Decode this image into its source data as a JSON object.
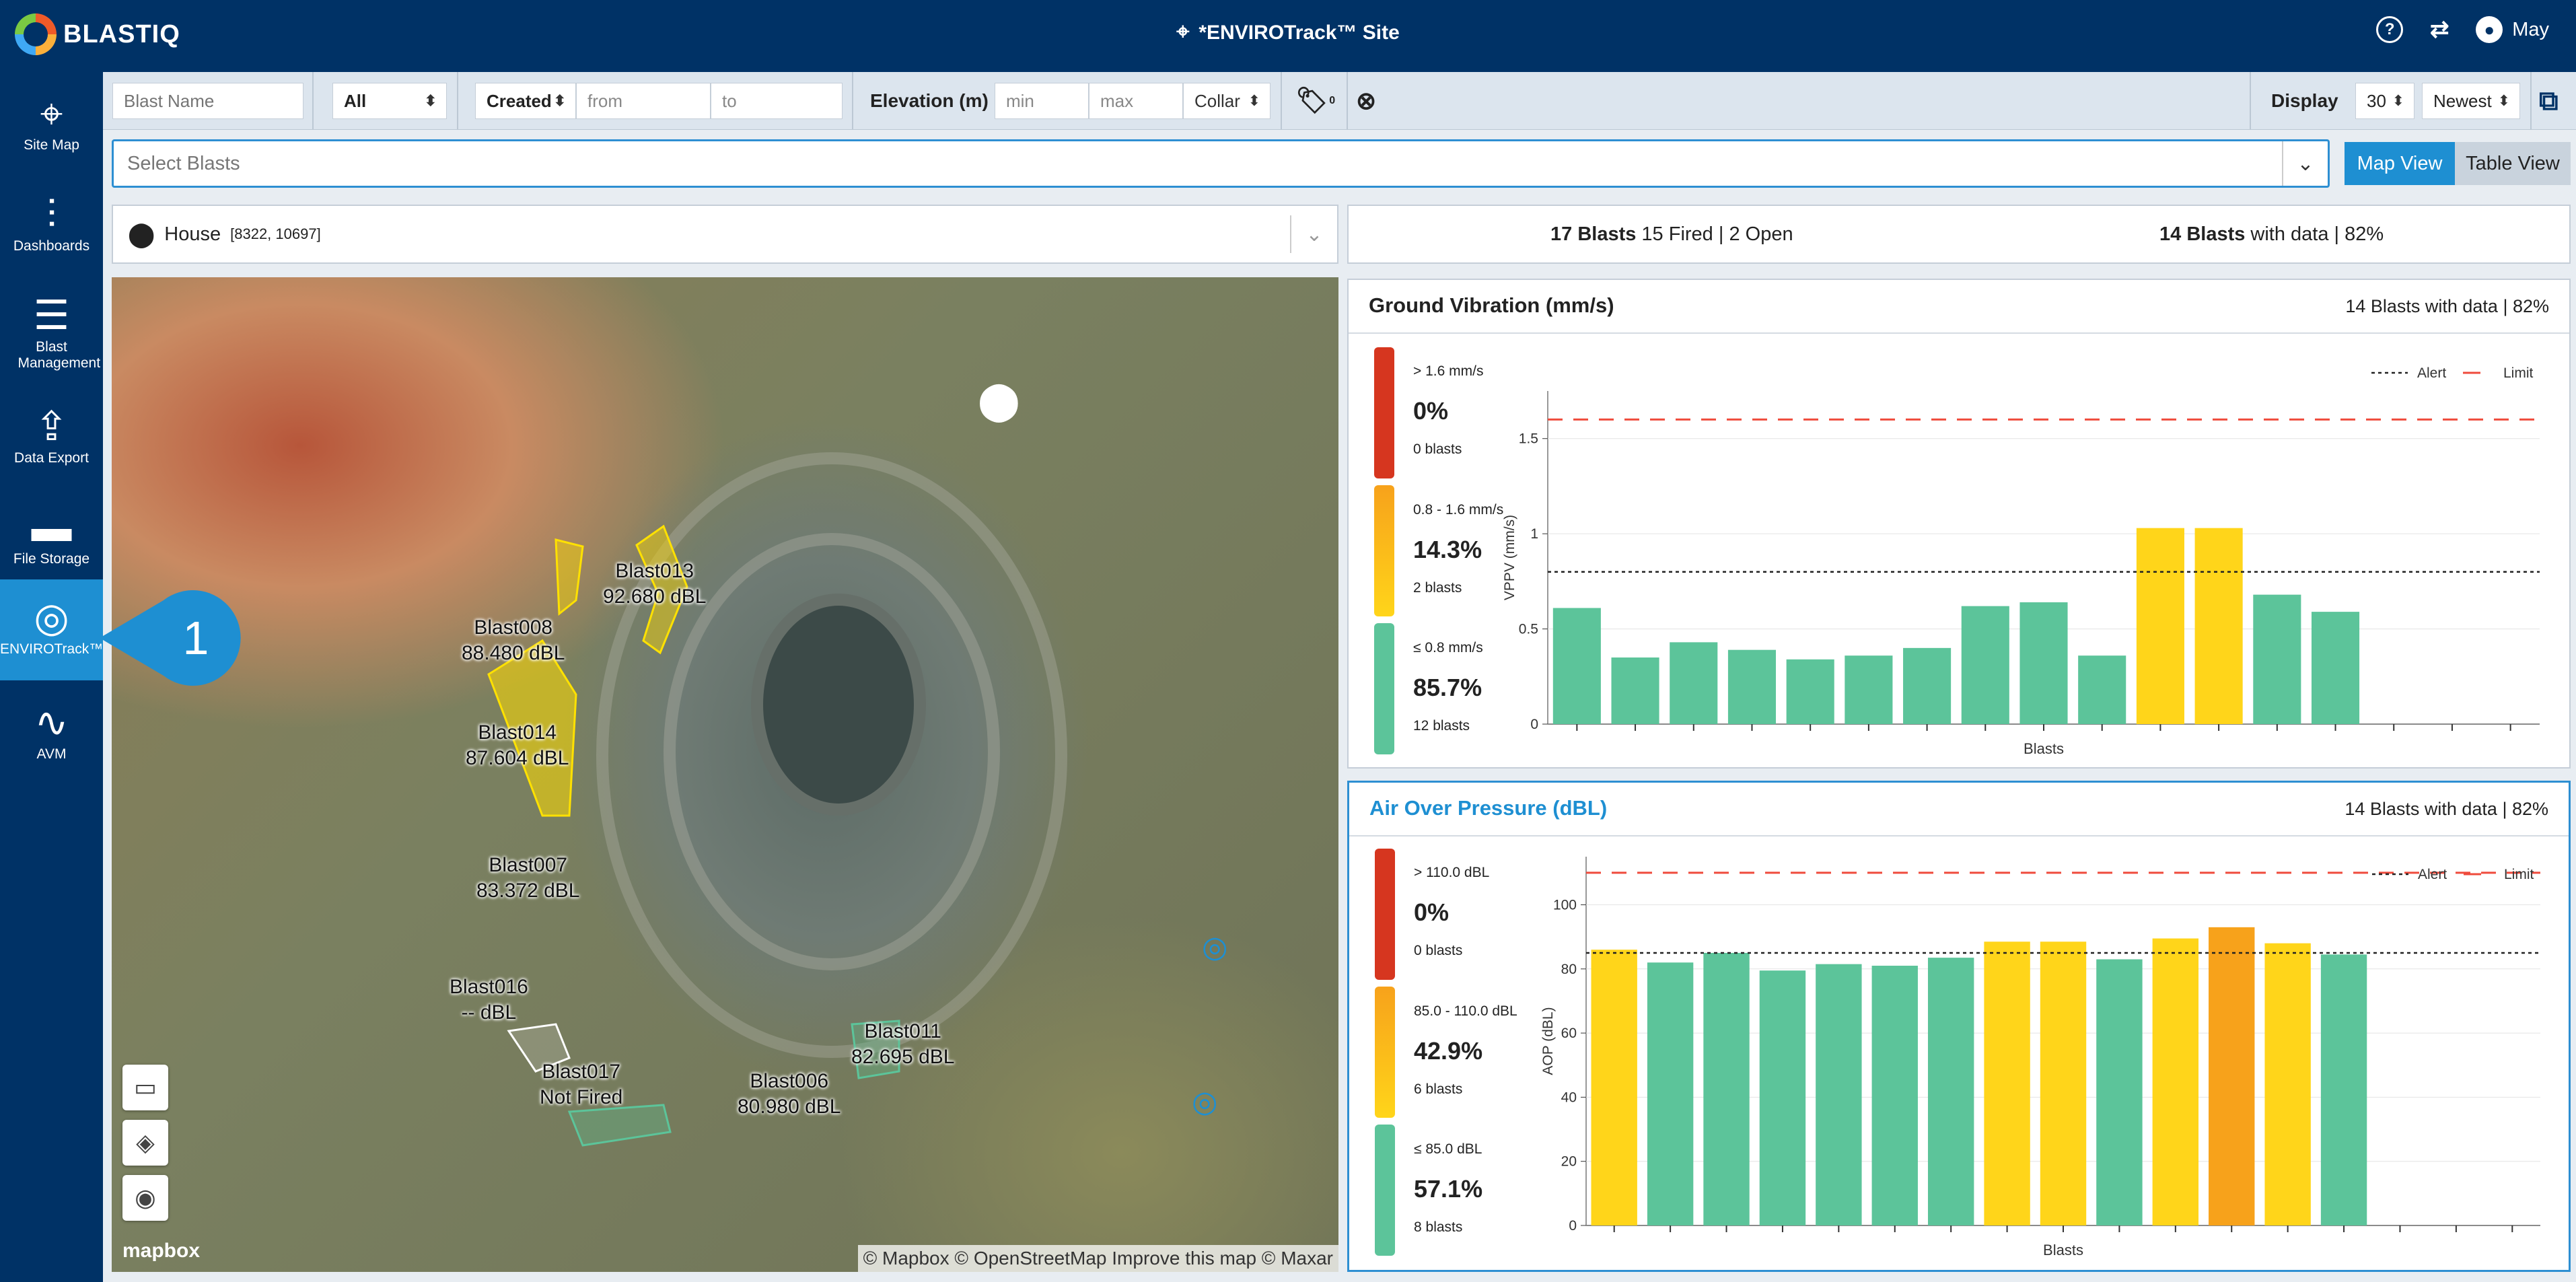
{
  "header": {
    "logo_text": "BLASTIQ",
    "site_title": "*ENVIROTrack™ Site",
    "help_icon": "?",
    "user_name": "May"
  },
  "sidebar": {
    "items": [
      {
        "label": "Site Map",
        "icon": "map-pin-icon"
      },
      {
        "label": "Dashboards",
        "icon": "bar-chart-icon"
      },
      {
        "label": "Blast Management",
        "icon": "list-icon"
      },
      {
        "label": "Data Export",
        "icon": "export-icon"
      },
      {
        "label": "File Storage",
        "icon": "folder-icon"
      },
      {
        "label": "ENVIROTrack™",
        "icon": "signal-icon"
      },
      {
        "label": "AVM",
        "icon": "waveform-icon"
      }
    ]
  },
  "filters": {
    "blast_name_placeholder": "Blast Name",
    "status": "All",
    "date_type": "Created",
    "from_placeholder": "from",
    "to_placeholder": "to",
    "elevation_label": "Elevation (m)",
    "min_placeholder": "min",
    "max_placeholder": "max",
    "elevation_ref": "Collar",
    "tag_count": "0",
    "display_label": "Display",
    "display_count": "30",
    "sort": "Newest"
  },
  "select_blasts": {
    "placeholder": "Select Blasts"
  },
  "views": {
    "map": "Map View",
    "table": "Table View"
  },
  "location": {
    "name": "House",
    "coords": "[8322, 10697]"
  },
  "summary": {
    "blasts_bold": "17 Blasts",
    "blasts_rest": "15 Fired | 2 Open",
    "with_data_bold": "14 Blasts",
    "with_data_rest": "with data | 82%"
  },
  "map": {
    "labels": [
      {
        "name": "Blast013",
        "value": "92.680 dBL"
      },
      {
        "name": "Blast008",
        "value": "88.480 dBL"
      },
      {
        "name": "Blast014",
        "value": "87.604 dBL"
      },
      {
        "name": "Blast007",
        "value": "83.372 dBL"
      },
      {
        "name": "Blast016",
        "value": "-- dBL"
      },
      {
        "name": "Blast017",
        "value": "Not Fired"
      },
      {
        "name": "Blast006",
        "value": "80.980 dBL"
      },
      {
        "name": "Blast011",
        "value": "82.695 dBL"
      }
    ],
    "mapbox_label": "mapbox",
    "attribution": "© Mapbox © OpenStreetMap Improve this map © Maxar"
  },
  "callout": {
    "number": "1"
  },
  "colors": {
    "red": "#d6361f",
    "orange": "#f7a21b",
    "yellow": "#ffd51a",
    "green": "#5cc49a",
    "accent": "#1e8fd2",
    "navy": "#003266"
  },
  "ground_vibration": {
    "title": "Ground Vibration (mm/s)",
    "right": "14 Blasts with data | 82%",
    "legend": [
      {
        "range": "> 1.6 mm/s",
        "pct": "0%",
        "count": "0 blasts"
      },
      {
        "range": "0.8 - 1.6 mm/s",
        "pct": "14.3%",
        "count": "2 blasts"
      },
      {
        "range": "≤ 0.8 mm/s",
        "pct": "85.7%",
        "count": "12 blasts"
      }
    ],
    "alert_label": "Alert",
    "limit_label": "Limit"
  },
  "air_pressure": {
    "title": "Air Over Pressure (dBL)",
    "right": "14 Blasts with data | 82%",
    "legend": [
      {
        "range": "> 110.0 dBL",
        "pct": "0%",
        "count": "0 blasts"
      },
      {
        "range": "85.0 - 110.0 dBL",
        "pct": "42.9%",
        "count": "6 blasts"
      },
      {
        "range": "≤ 85.0 dBL",
        "pct": "57.1%",
        "count": "8 blasts"
      }
    ],
    "alert_label": "Alert",
    "limit_label": "Limit"
  },
  "chart_data": [
    {
      "type": "bar",
      "title": "Ground Vibration (mm/s)",
      "xlabel": "Blasts",
      "ylabel": "VPPV (mm/s)",
      "ylim": [
        0,
        1.75
      ],
      "yticks": [
        0,
        0.5,
        1,
        1.5
      ],
      "ytick_labels": [
        "0",
        "0.5",
        "1",
        "1.5"
      ],
      "alert": 0.8,
      "limit": 1.6,
      "slots": 17,
      "values": [
        0.61,
        0.35,
        0.43,
        0.39,
        0.34,
        0.36,
        0.4,
        0.62,
        0.64,
        0.36,
        1.03,
        1.03,
        0.68,
        0.59
      ],
      "colors": [
        "green",
        "green",
        "green",
        "green",
        "green",
        "green",
        "green",
        "green",
        "green",
        "green",
        "yellow",
        "yellow",
        "green",
        "green"
      ]
    },
    {
      "type": "bar",
      "title": "Air Over Pressure (dBL)",
      "xlabel": "Blasts",
      "ylabel": "AOP (dBL)",
      "ylim": [
        0,
        115
      ],
      "yticks": [
        0,
        20,
        40,
        60,
        80,
        100
      ],
      "ytick_labels": [
        "0",
        "20",
        "40",
        "60",
        "80",
        "100"
      ],
      "alert": 85,
      "limit": 110,
      "slots": 17,
      "values": [
        86,
        82,
        85,
        79.5,
        81.5,
        81,
        83.5,
        88.5,
        88.5,
        83,
        89.5,
        93,
        88,
        84.5
      ],
      "colors": [
        "yellow",
        "green",
        "green",
        "green",
        "green",
        "green",
        "green",
        "yellow",
        "yellow",
        "green",
        "yellow",
        "orange",
        "yellow",
        "green"
      ]
    }
  ]
}
